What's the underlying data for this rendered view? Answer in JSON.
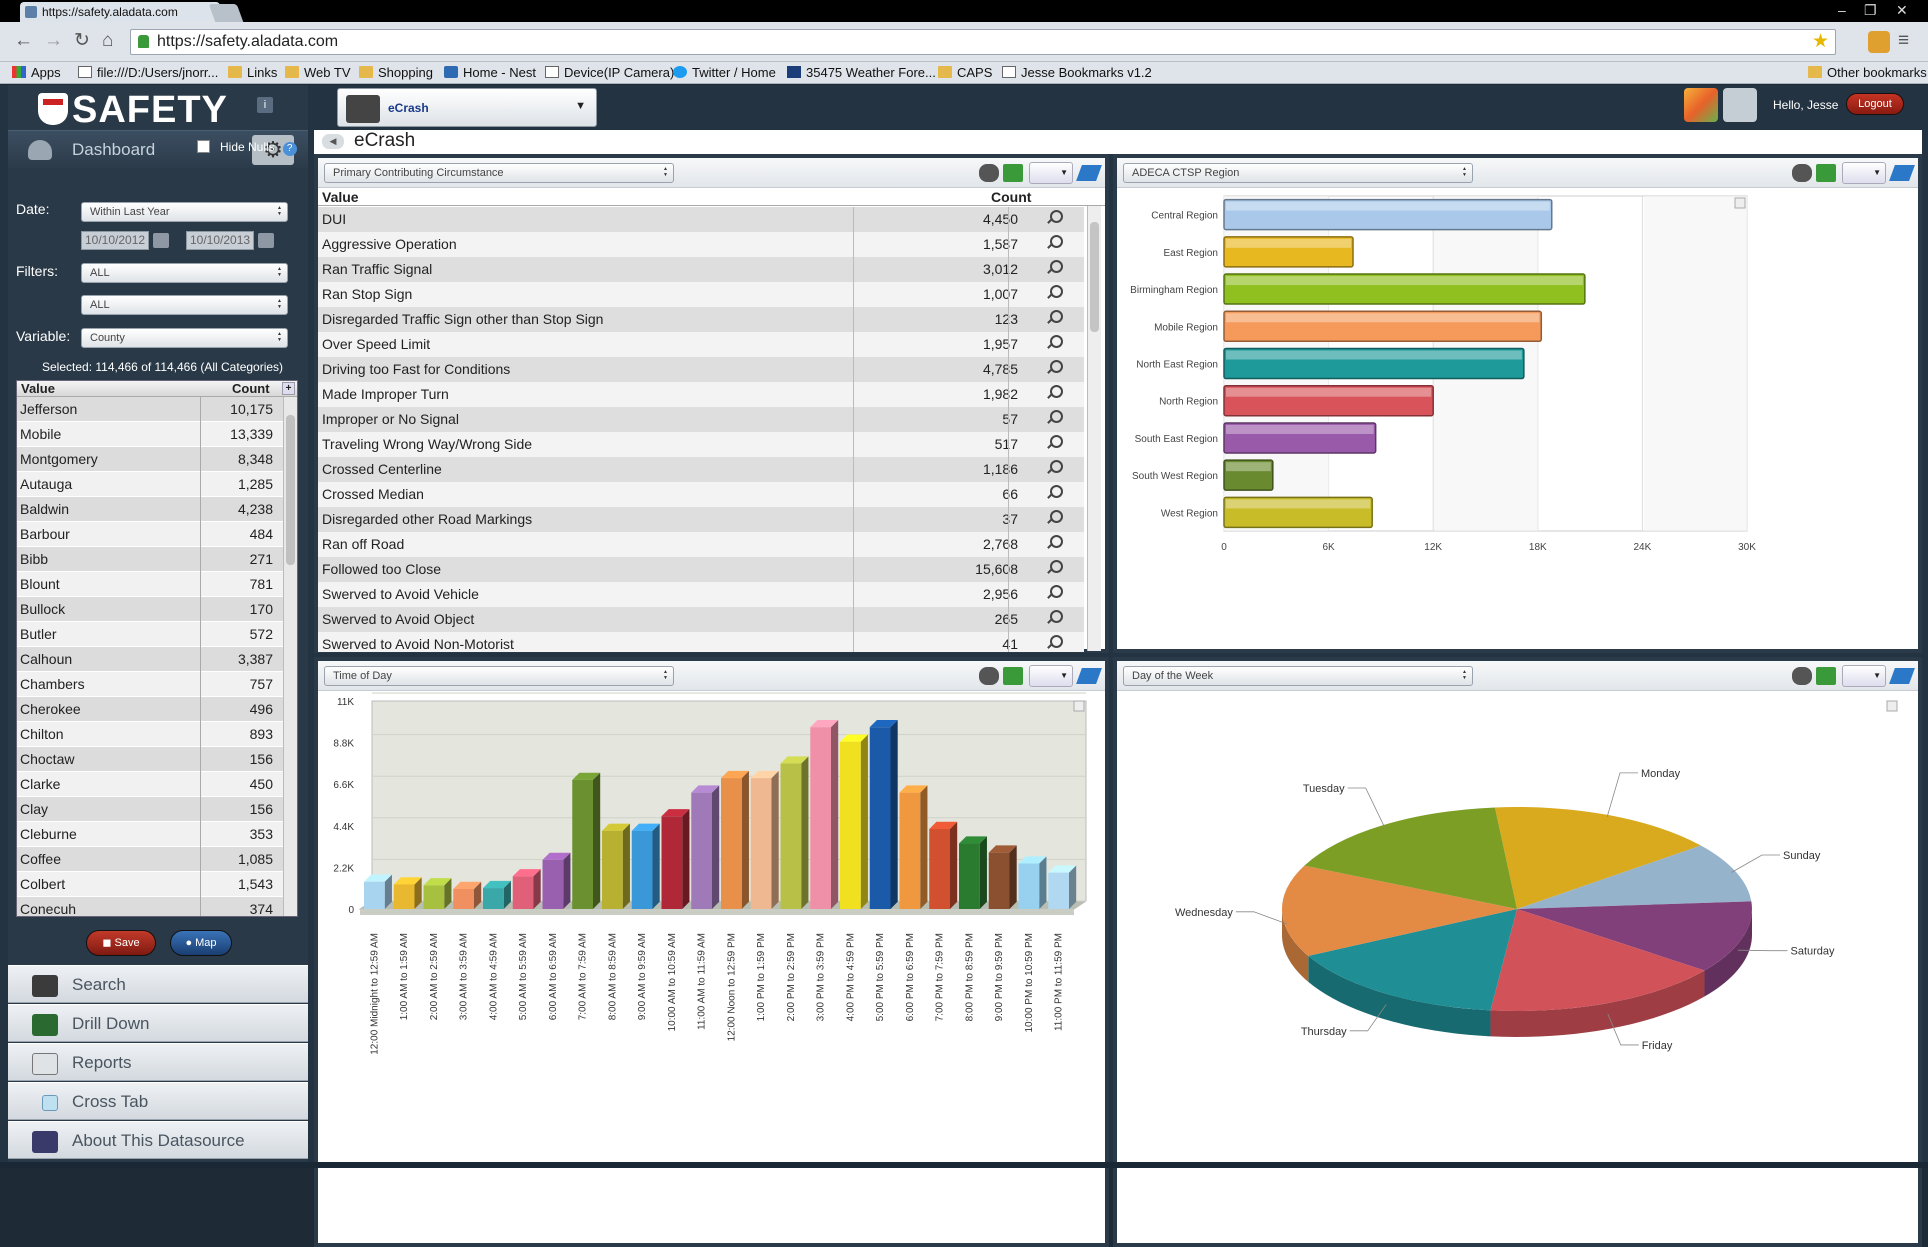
{
  "browser": {
    "tab_title": "https://safety.aladata.com",
    "url": "https://safety.aladata.com",
    "bookmarks": [
      "Apps",
      "file:///D:/Users/jnorr...",
      "Links",
      "Web TV",
      "Shopping",
      "Home - Nest",
      "Device(IP Camera)",
      "Twitter / Home",
      "35475 Weather Fore...",
      "CAPS",
      "Jesse Bookmarks v1.2",
      "Other bookmarks"
    ]
  },
  "app": {
    "logo": "SAFETY",
    "module": "eCrash",
    "breadcrumb": "eCrash",
    "greeting": "Hello, Jesse",
    "logout_label": "Logout"
  },
  "sidebar": {
    "dashboard_label": "Dashboard",
    "hide_nulls_label": "Hide Nulls",
    "date_label": "Date:",
    "date_range": "Within Last Year",
    "date_from": "10/10/2012",
    "date_to": "10/10/2013",
    "filters_label": "Filters:",
    "filter1": "ALL",
    "filter2": "ALL",
    "variable_label": "Variable:",
    "variable": "County",
    "selected_text": "Selected: 114,466 of 114,466 (All Categories)",
    "table_header": {
      "value": "Value",
      "count": "Count"
    },
    "rows": [
      {
        "v": "Jefferson",
        "c": "10,175"
      },
      {
        "v": "Mobile",
        "c": "13,339"
      },
      {
        "v": "Montgomery",
        "c": "8,348"
      },
      {
        "v": "Autauga",
        "c": "1,285"
      },
      {
        "v": "Baldwin",
        "c": "4,238"
      },
      {
        "v": "Barbour",
        "c": "484"
      },
      {
        "v": "Bibb",
        "c": "271"
      },
      {
        "v": "Blount",
        "c": "781"
      },
      {
        "v": "Bullock",
        "c": "170"
      },
      {
        "v": "Butler",
        "c": "572"
      },
      {
        "v": "Calhoun",
        "c": "3,387"
      },
      {
        "v": "Chambers",
        "c": "757"
      },
      {
        "v": "Cherokee",
        "c": "496"
      },
      {
        "v": "Chilton",
        "c": "893"
      },
      {
        "v": "Choctaw",
        "c": "156"
      },
      {
        "v": "Clarke",
        "c": "450"
      },
      {
        "v": "Clay",
        "c": "156"
      },
      {
        "v": "Cleburne",
        "c": "353"
      },
      {
        "v": "Coffee",
        "c": "1,085"
      },
      {
        "v": "Colbert",
        "c": "1,543"
      },
      {
        "v": "Conecuh",
        "c": "374"
      }
    ],
    "save_label": "Save",
    "map_label": "Map",
    "nav": [
      "Search",
      "Drill Down",
      "Reports",
      "Cross Tab",
      "About This Datasource"
    ]
  },
  "panel_table": {
    "selector": "Primary Contributing Circumstance",
    "header": {
      "value": "Value",
      "count": "Count"
    },
    "rows": [
      {
        "v": "DUI",
        "c": "4,450"
      },
      {
        "v": "Aggressive Operation",
        "c": "1,587"
      },
      {
        "v": "Ran Traffic Signal",
        "c": "3,012"
      },
      {
        "v": "Ran Stop Sign",
        "c": "1,007"
      },
      {
        "v": "Disregarded Traffic Sign other than Stop Sign",
        "c": "123"
      },
      {
        "v": "Over Speed Limit",
        "c": "1,957"
      },
      {
        "v": "Driving too Fast for Conditions",
        "c": "4,785"
      },
      {
        "v": "Made Improper Turn",
        "c": "1,982"
      },
      {
        "v": "Improper or No Signal",
        "c": "57"
      },
      {
        "v": "Traveling Wrong Way/Wrong Side",
        "c": "517"
      },
      {
        "v": "Crossed Centerline",
        "c": "1,186"
      },
      {
        "v": "Crossed Median",
        "c": "66"
      },
      {
        "v": "Disregarded other Road Markings",
        "c": "37"
      },
      {
        "v": "Ran off Road",
        "c": "2,768"
      },
      {
        "v": "Followed too Close",
        "c": "15,608"
      },
      {
        "v": "Swerved to Avoid Vehicle",
        "c": "2,956"
      },
      {
        "v": "Swerved to Avoid Object",
        "c": "265"
      },
      {
        "v": "Swerved to Avoid Non-Motorist",
        "c": "41"
      }
    ]
  },
  "panel_region": {
    "selector": "ADECA CTSP Region"
  },
  "panel_time": {
    "selector": "Time of Day"
  },
  "panel_day": {
    "selector": "Day of the Week"
  },
  "chart_data": [
    {
      "type": "bar",
      "orientation": "horizontal",
      "categories": [
        "Central Region",
        "East Region",
        "Birmingham Region",
        "Mobile Region",
        "North East Region",
        "North Region",
        "South East Region",
        "South West Region",
        "West Region"
      ],
      "values": [
        18800,
        7400,
        20700,
        18200,
        17200,
        12000,
        8700,
        2800,
        8500
      ],
      "colors": [
        "#a9c8ea",
        "#e8b820",
        "#8fc020",
        "#f59a5a",
        "#1f9a9a",
        "#d8535a",
        "#9a5aaa",
        "#6a8a30",
        "#c8bc28"
      ],
      "xticks": [
        "0",
        "6K",
        "12K",
        "18K",
        "24K",
        "30K"
      ],
      "xlim": [
        0,
        30000
      ],
      "grid": true
    },
    {
      "type": "bar",
      "style": "3d",
      "categories": [
        "12:00 Midnight to 12:59 AM",
        "1:00 AM to 1:59 AM",
        "2:00 AM to 2:59 AM",
        "3:00 AM to 3:59 AM",
        "4:00 AM to 4:59 AM",
        "5:00 AM to 5:59 AM",
        "6:00 AM to 6:59 AM",
        "7:00 AM to 7:59 AM",
        "8:00 AM to 8:59 AM",
        "9:00 AM to 9:59 AM",
        "10:00 AM to 10:59 AM",
        "11:00 AM to 11:59 AM",
        "12:00 Noon to 12:59 PM",
        "1:00 PM to 1:59 PM",
        "2:00 PM to 2:59 PM",
        "3:00 PM to 3:59 PM",
        "4:00 PM to 4:59 PM",
        "5:00 PM to 5:59 PM",
        "6:00 PM to 6:59 PM",
        "7:00 PM to 7:59 PM",
        "8:00 PM to 8:59 PM",
        "9:00 PM to 9:59 PM",
        "10:00 PM to 10:59 PM",
        "11:00 PM to 11:59 PM"
      ],
      "values": [
        1500,
        1350,
        1300,
        1100,
        1150,
        1800,
        2700,
        7100,
        4300,
        4300,
        5100,
        6400,
        7200,
        7200,
        8000,
        10000,
        9200,
        10000,
        6400,
        4400,
        3600,
        3100,
        2500,
        2000
      ],
      "colors": [
        "#a8d4f0",
        "#e8b830",
        "#a8c040",
        "#f09060",
        "#3aa8a8",
        "#e0607a",
        "#9a60b0",
        "#6a9030",
        "#b8b030",
        "#3a98d8",
        "#b02838",
        "#a07ab8",
        "#e8904a",
        "#f0b890",
        "#b8c048",
        "#f090a8",
        "#f0e020",
        "#1a5aa8",
        "#f09840",
        "#d05030",
        "#2a7a30",
        "#8a5030",
        "#98d0f0",
        "#b0d8f0"
      ],
      "yticks": [
        "0",
        "2.2K",
        "4.4K",
        "6.6K",
        "8.8K",
        "11K"
      ],
      "ylim": [
        0,
        11000
      ]
    },
    {
      "type": "pie",
      "style": "3d",
      "labels": [
        "Monday",
        "Sunday",
        "Saturday",
        "Friday",
        "Thursday",
        "Wednesday",
        "Tuesday"
      ],
      "values": [
        15.8,
        9.5,
        11.5,
        16.5,
        15.6,
        14.6,
        16.5
      ],
      "colors": [
        "#d9a91e",
        "#96b3cc",
        "#82407a",
        "#d2525a",
        "#1f8f95",
        "#e38a45",
        "#7c9e24"
      ]
    }
  ]
}
